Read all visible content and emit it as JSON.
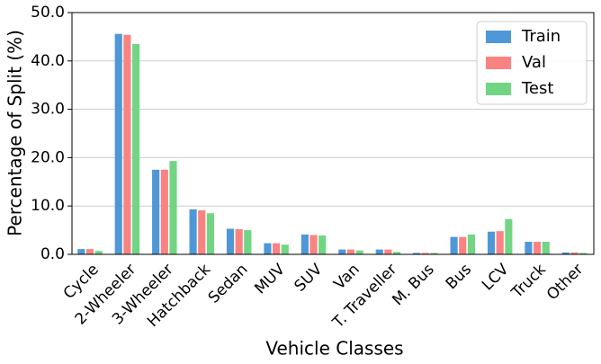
{
  "chart_data": {
    "type": "bar",
    "xlabel": "Vehicle Classes",
    "ylabel": "Percentage of Split (%)",
    "categories": [
      "Cycle",
      "2-Wheeler",
      "3-Wheeler",
      "Hatchback",
      "Sedan",
      "MUV",
      "SUV",
      "Van",
      "T. Traveller",
      "M. Bus",
      "Bus",
      "LCV",
      "Truck",
      "Other"
    ],
    "series": [
      {
        "name": "Train",
        "color": "#4f98d8",
        "values": [
          1.1,
          45.6,
          17.5,
          9.3,
          5.3,
          2.3,
          4.1,
          1.0,
          1.0,
          0.3,
          3.6,
          4.7,
          2.6,
          0.4
        ]
      },
      {
        "name": "Val",
        "color": "#f98383",
        "values": [
          1.1,
          45.4,
          17.5,
          9.1,
          5.2,
          2.3,
          4.0,
          1.0,
          1.0,
          0.3,
          3.6,
          4.8,
          2.6,
          0.4
        ]
      },
      {
        "name": "Test",
        "color": "#72d584",
        "values": [
          0.7,
          43.5,
          19.3,
          8.5,
          5.0,
          2.0,
          3.9,
          0.8,
          0.5,
          0.3,
          4.1,
          7.3,
          2.6,
          0.3
        ]
      }
    ],
    "ylim": [
      0,
      50
    ],
    "yticks": [
      {
        "value": 0,
        "label": "0.0"
      },
      {
        "value": 10,
        "label": "10.0"
      },
      {
        "value": 20,
        "label": "20.0"
      },
      {
        "value": 30,
        "label": "30.0"
      },
      {
        "value": 40,
        "label": "40.0"
      },
      {
        "value": 50,
        "label": "50.0"
      }
    ],
    "grid": true,
    "legend": "upper-right"
  }
}
